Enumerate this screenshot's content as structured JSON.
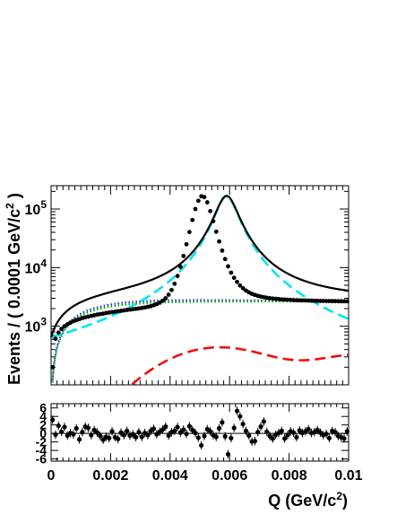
{
  "chart_data": [
    {
      "type": "line",
      "panel": "fit",
      "ylabel": "Events / ( 0.0001 GeV/c",
      "ylabel_sup": "2",
      "ylabel_close": " )",
      "yscale": "log",
      "xlim": [
        0,
        0.01
      ],
      "ylim": [
        100,
        250000
      ],
      "y_tick_labels": [
        {
          "value": 1000,
          "base": "10",
          "exp": "3"
        },
        {
          "value": 10000,
          "base": "10",
          "exp": "4"
        },
        {
          "value": 100000,
          "base": "10",
          "exp": "5"
        }
      ],
      "series": [
        {
          "role": "data",
          "color": "#000000",
          "style": "points-with-error-bars",
          "x": [
            5e-05,
            0.00015,
            0.00025,
            0.00035,
            0.00045,
            0.00055,
            0.00065,
            0.00075,
            0.00085,
            0.00095,
            0.00105,
            0.00115,
            0.00125,
            0.00135,
            0.00145,
            0.00155,
            0.00165,
            0.00175,
            0.00185,
            0.00195,
            0.00205,
            0.00215,
            0.00225,
            0.00235,
            0.00245,
            0.00255,
            0.00265,
            0.00275,
            0.00285,
            0.00295,
            0.00305,
            0.00315,
            0.00325,
            0.00335,
            0.00345,
            0.00355,
            0.00365,
            0.00375,
            0.00385,
            0.00395,
            0.00405,
            0.00415,
            0.00425,
            0.00435,
            0.00445,
            0.00455,
            0.00465,
            0.00475,
            0.00485,
            0.00495,
            0.00505,
            0.00515,
            0.00525,
            0.00535,
            0.00545,
            0.00555,
            0.00565,
            0.00575,
            0.00585,
            0.00595,
            0.00605,
            0.00615,
            0.00625,
            0.00635,
            0.00645,
            0.00655,
            0.00665,
            0.00675,
            0.00685,
            0.00695,
            0.00705,
            0.00715,
            0.00725,
            0.00735,
            0.00745,
            0.00755,
            0.00765,
            0.00775,
            0.00785,
            0.00795,
            0.00805,
            0.00815,
            0.00825,
            0.00835,
            0.00845,
            0.00855,
            0.00865,
            0.00875,
            0.00885,
            0.00895,
            0.00905,
            0.00915,
            0.00925,
            0.00935,
            0.00945,
            0.00955,
            0.00965,
            0.00975,
            0.00985,
            0.00995
          ],
          "y": [
            200,
            610,
            780,
            900,
            1000,
            1080,
            1150,
            1220,
            1270,
            1320,
            1380,
            1420,
            1460,
            1500,
            1540,
            1580,
            1610,
            1640,
            1680,
            1710,
            1740,
            1770,
            1800,
            1830,
            1860,
            1890,
            1920,
            1950,
            1980,
            2010,
            2050,
            2090,
            2140,
            2200,
            2280,
            2380,
            2520,
            2720,
            3000,
            3450,
            4150,
            5300,
            7200,
            10300,
            15800,
            25000,
            40500,
            65000,
            100000,
            138000,
            165000,
            160000,
            130000,
            92000,
            62000,
            41000,
            28000,
            19500,
            14000,
            10500,
            8200,
            6700,
            5700,
            4950,
            4450,
            4050,
            3780,
            3570,
            3420,
            3300,
            3200,
            3130,
            3060,
            3010,
            2970,
            2930,
            2900,
            2870,
            2850,
            2830,
            2810,
            2790,
            2780,
            2770,
            2760,
            2750,
            2740,
            2730,
            2720,
            2710,
            2700,
            2700,
            2690,
            2690,
            2680,
            2680,
            2670,
            2670,
            2660,
            2660
          ]
        },
        {
          "role": "total-fit",
          "color": "#000000",
          "style": "solid"
        },
        {
          "role": "background",
          "color": "#1a33cc",
          "style": "dotted"
        },
        {
          "role": "background-2",
          "color": "#00aa00",
          "style": "dotted"
        },
        {
          "role": "signal-peak",
          "color": "#00e5ee",
          "style": "dashed"
        },
        {
          "role": "broad-component",
          "color": "#ee1111",
          "style": "dashed"
        }
      ]
    },
    {
      "type": "scatter",
      "panel": "pull",
      "xlabel": "Q (GeV/c",
      "xlabel_sup": "2",
      "xlabel_close": ")",
      "xlim": [
        0,
        0.01
      ],
      "ylim": [
        -6.5,
        7
      ],
      "x_tick_labels": [
        "0",
        "0.002",
        "0.004",
        "0.006",
        "0.008",
        "0.01"
      ],
      "y_tick_labels": [
        "6",
        "4",
        "2",
        "0",
        "-2",
        "-4",
        "-6"
      ],
      "series": [
        {
          "role": "pull",
          "color": "#000000",
          "x": [
            5e-05,
            0.00015,
            0.00025,
            0.00035,
            0.00045,
            0.00055,
            0.00065,
            0.00075,
            0.00085,
            0.00095,
            0.00105,
            0.00115,
            0.00125,
            0.00135,
            0.00145,
            0.00155,
            0.00165,
            0.00175,
            0.00185,
            0.00195,
            0.00205,
            0.00215,
            0.00225,
            0.00235,
            0.00245,
            0.00255,
            0.00265,
            0.00275,
            0.00285,
            0.00295,
            0.00305,
            0.00315,
            0.00325,
            0.00335,
            0.00345,
            0.00355,
            0.00365,
            0.00375,
            0.00385,
            0.00395,
            0.00405,
            0.00415,
            0.00425,
            0.00435,
            0.00445,
            0.00455,
            0.00465,
            0.00475,
            0.00485,
            0.00495,
            0.00505,
            0.00515,
            0.00525,
            0.00535,
            0.00545,
            0.00555,
            0.00565,
            0.00575,
            0.00585,
            0.00595,
            0.00605,
            0.00615,
            0.00625,
            0.00635,
            0.00645,
            0.00655,
            0.00665,
            0.00675,
            0.00685,
            0.00695,
            0.00705,
            0.00715,
            0.00725,
            0.00735,
            0.00745,
            0.00755,
            0.00765,
            0.00775,
            0.00785,
            0.00795,
            0.00805,
            0.00815,
            0.00825,
            0.00835,
            0.00845,
            0.00855,
            0.00865,
            0.00875,
            0.00885,
            0.00895,
            0.00905,
            0.00915,
            0.00925,
            0.00935,
            0.00945,
            0.00955,
            0.00965,
            0.00975,
            0.00985,
            0.00995
          ],
          "y": [
            3.2,
            -0.3,
            1.8,
            0.4,
            1.5,
            -0.5,
            0.1,
            -0.2,
            1.2,
            -1.4,
            0.3,
            1.6,
            1.3,
            -0.4,
            0.8,
            0.2,
            -0.6,
            -1.5,
            -0.8,
            -1.1,
            0.5,
            -0.9,
            -1.3,
            0.2,
            -0.4,
            0.6,
            -0.5,
            -0.2,
            -0.9,
            0.3,
            -0.8,
            0.1,
            -0.4,
            0.6,
            1.1,
            -0.2,
            0.4,
            0.9,
            1.6,
            -0.5,
            0.3,
            0.6,
            1.5,
            0.2,
            0.9,
            -0.1,
            1.7,
            0.8,
            0.1,
            -1.0,
            -2.8,
            -0.6,
            1.0,
            0.5,
            -0.4,
            -0.8,
            1.2,
            2.6,
            -0.7,
            -4.9,
            -1.1,
            1.3,
            5.3,
            4.0,
            2.2,
            0.6,
            -0.5,
            -1.9,
            -1.8,
            0.3,
            1.6,
            2.8,
            0.4,
            -0.6,
            -1.2,
            -0.3,
            0.1,
            0.6,
            -1.2,
            -0.4,
            0.5,
            0.2,
            -0.9,
            0.7,
            0.1,
            0.5,
            1.0,
            0.1,
            0.3,
            0.8,
            0.2,
            -0.4,
            -0.1,
            -1.1,
            0.6,
            0.3,
            -0.6,
            -0.9,
            -1.2,
            0.5
          ]
        }
      ]
    }
  ]
}
